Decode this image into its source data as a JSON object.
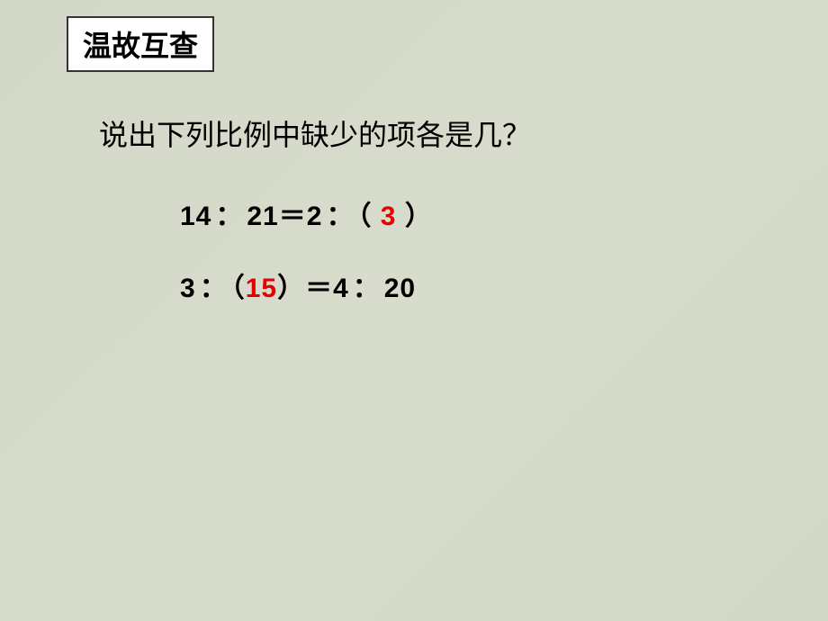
{
  "title": "温故互查",
  "question": "说出下列比例中缺少的项各是几？",
  "eq1": {
    "p1": "14",
    "p2": "21",
    "p3": "2",
    "answer": "3",
    "open_paren": "（",
    "close_paren": "）",
    "colon": "：",
    "equals": "＝"
  },
  "eq2": {
    "p1": "3",
    "answer": "15",
    "p3": "4",
    "p4": "20",
    "open_paren": "（",
    "close_paren": "）",
    "colon": "：",
    "equals": "＝"
  },
  "colors": {
    "background": "#d4d8c8",
    "title_bg": "#ffffff",
    "title_border": "#333333",
    "text": "#000000",
    "answer": "#e60000"
  },
  "fonts": {
    "title_size": 32,
    "question_size": 32,
    "equation_size": 30
  }
}
